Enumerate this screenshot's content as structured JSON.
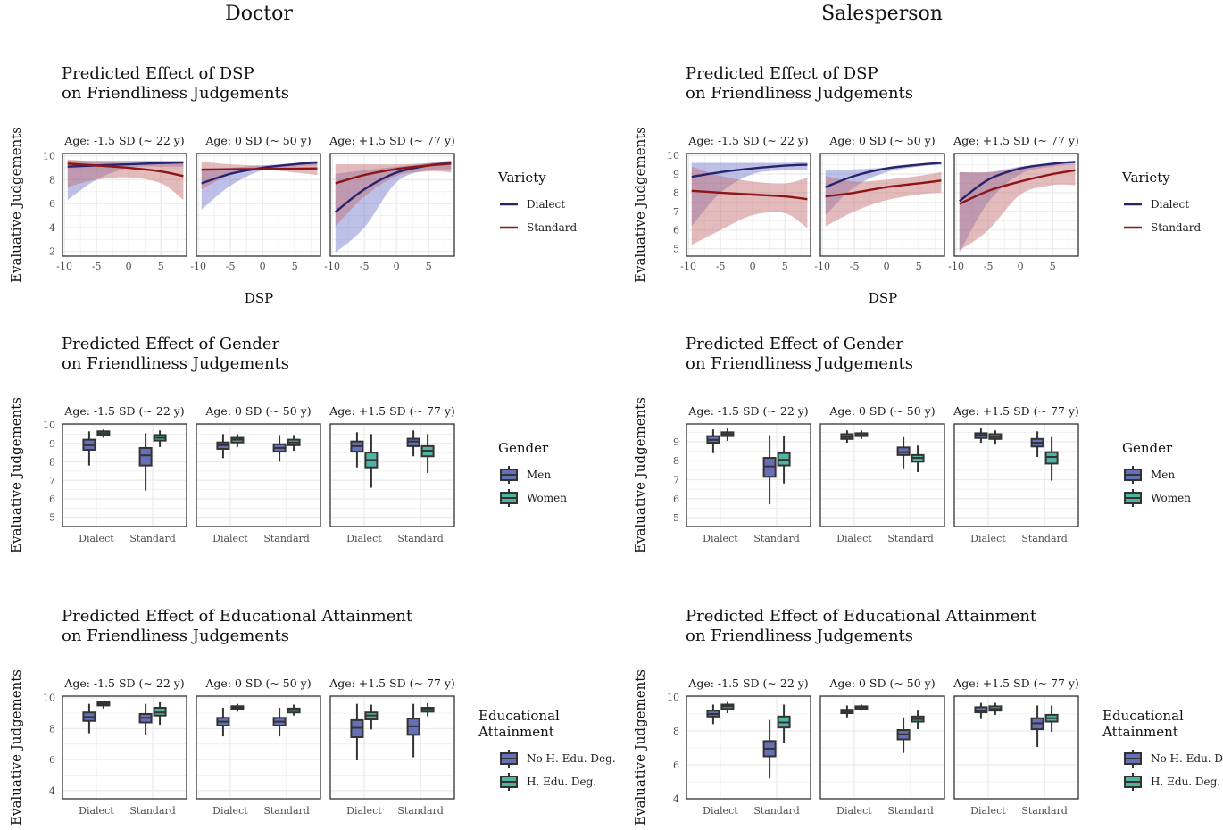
{
  "columns": [
    {
      "title": "Doctor"
    },
    {
      "title": "Salesperson"
    }
  ],
  "colors": {
    "dialect_line": "#27236e",
    "standard_line": "#8e1515",
    "dialect_band": "#6f76c9",
    "standard_band": "#c0686a",
    "men_fill": "#6670b6",
    "women_fill": "#4fb5a2",
    "box_outline": "#333333",
    "grid": "#ebebeb",
    "panel_border": "#333333"
  },
  "chart_data": [
    {
      "column": 0,
      "row": 0,
      "type": "line",
      "title": [
        "Predicted Effect of DSP",
        "on Friendliness Judgements"
      ],
      "xlabel": "DSP",
      "ylabel": "Evaluative Judgements",
      "xlim": [
        -10.3,
        9.0
      ],
      "ylim": [
        1.6,
        10.2
      ],
      "xticks": [
        -10,
        -5,
        0,
        5
      ],
      "yticks": [
        2,
        4,
        6,
        8,
        10
      ],
      "strips": [
        "Age: -1.5 SD (~ 22 y)",
        "Age: 0 SD (~ 50 y)",
        "Age: +1.5 SD (~ 77 y)"
      ],
      "legend": {
        "title": [
          "Variety"
        ],
        "items": [
          "Dialect",
          "Standard"
        ]
      },
      "x": [
        -9.5,
        -5,
        0,
        5,
        8.5
      ],
      "panels": [
        {
          "series": [
            {
              "name": "Dialect",
              "y": [
                9.1,
                9.2,
                9.3,
                9.4,
                9.45
              ],
              "lower": [
                6.3,
                8.0,
                9.0,
                9.1,
                9.1
              ],
              "upper": [
                9.6,
                9.6,
                9.6,
                9.6,
                9.6
              ]
            },
            {
              "name": "Standard",
              "y": [
                9.35,
                9.2,
                9.0,
                8.7,
                8.3
              ],
              "lower": [
                7.4,
                8.0,
                8.2,
                7.7,
                6.3
              ],
              "upper": [
                9.7,
                9.5,
                9.4,
                9.4,
                9.5
              ]
            }
          ]
        },
        {
          "series": [
            {
              "name": "Dialect",
              "y": [
                7.7,
                8.5,
                9.0,
                9.3,
                9.45
              ],
              "lower": [
                5.5,
                7.5,
                8.8,
                9.1,
                9.2
              ],
              "upper": [
                8.8,
                9.0,
                9.2,
                9.4,
                9.6
              ]
            },
            {
              "name": "Standard",
              "y": [
                8.85,
                8.88,
                8.9,
                8.93,
                8.95
              ],
              "lower": [
                7.2,
                8.4,
                8.8,
                8.6,
                8.4
              ],
              "upper": [
                9.5,
                9.3,
                9.2,
                9.3,
                9.5
              ]
            }
          ]
        },
        {
          "series": [
            {
              "name": "Dialect",
              "y": [
                5.3,
                7.2,
                8.6,
                9.2,
                9.4
              ],
              "lower": [
                1.9,
                4.0,
                7.8,
                8.8,
                8.8
              ],
              "upper": [
                8.5,
                8.8,
                9.1,
                9.4,
                9.6
              ]
            },
            {
              "name": "Standard",
              "y": [
                7.7,
                8.4,
                8.9,
                9.2,
                9.35
              ],
              "lower": [
                4.1,
                6.6,
                8.3,
                8.7,
                8.6
              ],
              "upper": [
                9.3,
                9.3,
                9.3,
                9.4,
                9.6
              ]
            }
          ]
        }
      ]
    },
    {
      "column": 1,
      "row": 0,
      "type": "line",
      "title": [
        "Predicted Effect of DSP",
        "on Friendliness Judgements"
      ],
      "xlabel": "DSP",
      "ylabel": "Evaluative Judgements",
      "xlim": [
        -10.3,
        9.0
      ],
      "ylim": [
        4.6,
        10.1
      ],
      "xticks": [
        -10,
        -5,
        0,
        5
      ],
      "yticks": [
        5,
        6,
        7,
        8,
        9,
        10
      ],
      "strips": [
        "Age: -1.5 SD (~ 22 y)",
        "Age: 0 SD (~ 50 y)",
        "Age: +1.5 SD (~ 77 y)"
      ],
      "legend": {
        "title": [
          "Variety"
        ],
        "items": [
          "Dialect",
          "Standard"
        ]
      },
      "x": [
        -9.5,
        -5,
        0,
        5,
        8.5
      ],
      "panels": [
        {
          "series": [
            {
              "name": "Dialect",
              "y": [
                8.85,
                9.1,
                9.3,
                9.45,
                9.5
              ],
              "lower": [
                6.2,
                8.0,
                9.0,
                9.2,
                9.2
              ],
              "upper": [
                9.6,
                9.6,
                9.6,
                9.6,
                9.65
              ]
            },
            {
              "name": "Standard",
              "y": [
                8.1,
                8.0,
                7.9,
                7.8,
                7.65
              ],
              "lower": [
                5.2,
                6.0,
                6.8,
                6.9,
                6.1
              ],
              "upper": [
                9.4,
                8.9,
                8.6,
                8.5,
                8.8
              ]
            }
          ]
        },
        {
          "series": [
            {
              "name": "Dialect",
              "y": [
                8.3,
                8.9,
                9.3,
                9.5,
                9.6
              ],
              "lower": [
                6.8,
                8.3,
                9.1,
                9.4,
                9.5
              ],
              "upper": [
                9.2,
                9.25,
                9.35,
                9.55,
                9.65
              ]
            },
            {
              "name": "Standard",
              "y": [
                7.8,
                8.0,
                8.3,
                8.5,
                8.65
              ],
              "lower": [
                6.2,
                7.0,
                7.6,
                7.9,
                8.0
              ],
              "upper": [
                8.9,
                8.6,
                8.7,
                8.9,
                9.1
              ]
            }
          ]
        },
        {
          "series": [
            {
              "name": "Dialect",
              "y": [
                7.55,
                8.7,
                9.3,
                9.55,
                9.65
              ],
              "lower": [
                4.8,
                7.5,
                9.0,
                9.4,
                9.5
              ],
              "upper": [
                9.1,
                9.1,
                9.4,
                9.6,
                9.7
              ]
            },
            {
              "name": "Standard",
              "y": [
                7.4,
                8.1,
                8.6,
                9.0,
                9.2
              ],
              "lower": [
                4.9,
                6.0,
                7.9,
                8.4,
                8.4
              ],
              "upper": [
                9.1,
                9.1,
                9.3,
                9.5,
                9.5
              ]
            }
          ]
        }
      ]
    },
    {
      "column": 0,
      "row": 1,
      "type": "box",
      "title": [
        "Predicted Effect of Gender",
        "on Friendliness Judgements"
      ],
      "ylabel": "Evaluative Judgements",
      "ylim": [
        4.5,
        10.05
      ],
      "yticks": [
        5,
        6,
        7,
        8,
        9,
        10
      ],
      "categories": [
        "Dialect",
        "Standard"
      ],
      "strips": [
        "Age: -1.5 SD (~ 22 y)",
        "Age: 0 SD (~ 50 y)",
        "Age: +1.5 SD (~ 77 y)"
      ],
      "legend": {
        "title": [
          "Gender"
        ],
        "items": [
          "Men",
          "Women"
        ]
      },
      "stats_order": [
        "min",
        "q1",
        "median",
        "q3",
        "max"
      ],
      "panels": [
        {
          "groups": [
            [
              [
                7.8,
                8.65,
                8.9,
                9.2,
                9.65
              ],
              [
                9.3,
                9.45,
                9.55,
                9.65,
                9.75
              ]
            ],
            [
              [
                6.45,
                7.8,
                8.35,
                8.75,
                9.55
              ],
              [
                8.8,
                9.15,
                9.3,
                9.45,
                9.7
              ]
            ]
          ]
        },
        {
          "groups": [
            [
              [
                8.2,
                8.7,
                8.9,
                9.05,
                9.5
              ],
              [
                8.8,
                9.05,
                9.2,
                9.3,
                9.5
              ]
            ],
            [
              [
                8.0,
                8.55,
                8.75,
                8.95,
                9.45
              ],
              [
                8.6,
                8.9,
                9.05,
                9.2,
                9.45
              ]
            ]
          ]
        },
        {
          "groups": [
            [
              [
                7.7,
                8.55,
                8.85,
                9.1,
                9.6
              ],
              [
                6.6,
                7.7,
                8.1,
                8.5,
                9.5
              ]
            ],
            [
              [
                8.3,
                8.85,
                9.1,
                9.25,
                9.7
              ],
              [
                7.4,
                8.3,
                8.6,
                8.85,
                9.5
              ]
            ]
          ]
        }
      ]
    },
    {
      "column": 1,
      "row": 1,
      "type": "box",
      "title": [
        "Predicted Effect of Gender",
        "on Friendliness Judgements"
      ],
      "ylabel": "Evaluative Judgements",
      "ylim": [
        4.53,
        9.94
      ],
      "yticks": [
        5,
        6,
        7,
        8,
        9
      ],
      "categories": [
        "Dialect",
        "Standard"
      ],
      "strips": [
        "Age: -1.5 SD (~ 22 y)",
        "Age: 0 SD (~ 50 y)",
        "Age: +1.5 SD (~ 77 y)"
      ],
      "legend": {
        "title": [
          "Gender"
        ],
        "items": [
          "Men",
          "Women"
        ]
      },
      "stats_order": [
        "min",
        "q1",
        "median",
        "q3",
        "max"
      ],
      "panels": [
        {
          "groups": [
            [
              [
                8.4,
                8.95,
                9.1,
                9.3,
                9.65
              ],
              [
                9.05,
                9.3,
                9.4,
                9.5,
                9.7
              ]
            ],
            [
              [
                5.7,
                7.15,
                7.7,
                8.15,
                9.35
              ],
              [
                6.8,
                7.75,
                8.05,
                8.4,
                9.3
              ]
            ]
          ]
        },
        {
          "groups": [
            [
              [
                8.95,
                9.15,
                9.25,
                9.4,
                9.6
              ],
              [
                9.15,
                9.3,
                9.35,
                9.45,
                9.6
              ]
            ],
            [
              [
                7.6,
                8.3,
                8.45,
                8.7,
                9.25
              ],
              [
                7.4,
                7.95,
                8.15,
                8.3,
                8.8
              ]
            ]
          ]
        },
        {
          "groups": [
            [
              [
                8.95,
                9.2,
                9.35,
                9.45,
                9.7
              ],
              [
                8.85,
                9.15,
                9.25,
                9.4,
                9.6
              ]
            ],
            [
              [
                8.2,
                8.75,
                8.95,
                9.15,
                9.55
              ],
              [
                6.95,
                7.85,
                8.2,
                8.45,
                9.25
              ]
            ]
          ]
        }
      ]
    },
    {
      "column": 0,
      "row": 2,
      "type": "box",
      "title": [
        "Predicted Effect of Educational Attainment",
        "on Friendliness Judgements"
      ],
      "ylabel": "Evaluative Judgements",
      "ylim": [
        3.47,
        10.1
      ],
      "yticks": [
        4,
        6,
        8,
        10
      ],
      "categories": [
        "Dialect",
        "Standard"
      ],
      "strips": [
        "Age: -1.5 SD (~ 22 y)",
        "Age: 0 SD (~ 50 y)",
        "Age: +1.5 SD (~ 77 y)"
      ],
      "legend": {
        "title": [
          "Educational",
          "Attainment"
        ],
        "items": [
          "No H. Edu. Deg.",
          "H. Edu. Deg."
        ]
      },
      "stats_order": [
        "min",
        "q1",
        "median",
        "q3",
        "max"
      ],
      "panels": [
        {
          "groups": [
            [
              [
                7.7,
                8.5,
                8.75,
                9.05,
                9.6
              ],
              [
                9.3,
                9.5,
                9.6,
                9.7,
                9.75
              ]
            ],
            [
              [
                7.6,
                8.4,
                8.7,
                8.95,
                9.6
              ],
              [
                8.25,
                8.85,
                9.05,
                9.35,
                9.7
              ]
            ]
          ]
        },
        {
          "groups": [
            [
              [
                7.5,
                8.2,
                8.45,
                8.7,
                9.35
              ],
              [
                9.1,
                9.25,
                9.35,
                9.45,
                9.6
              ]
            ],
            [
              [
                7.5,
                8.2,
                8.45,
                8.7,
                9.35
              ],
              [
                8.85,
                9.05,
                9.2,
                9.3,
                9.55
              ]
            ]
          ]
        },
        {
          "groups": [
            [
              [
                5.95,
                7.45,
                8.05,
                8.55,
                9.6
              ],
              [
                7.95,
                8.6,
                8.85,
                9.05,
                9.55
              ]
            ],
            [
              [
                6.15,
                7.6,
                8.15,
                8.65,
                9.6
              ],
              [
                8.8,
                9.1,
                9.25,
                9.35,
                9.65
              ]
            ]
          ]
        }
      ]
    },
    {
      "column": 1,
      "row": 2,
      "type": "box",
      "title": [
        "Predicted Effect of Educational Attainment",
        "on Friendliness Judgements"
      ],
      "ylabel": "Evaluative Judgements",
      "ylim": [
        4.0,
        10.05
      ],
      "yticks": [
        4,
        6,
        8,
        10
      ],
      "categories": [
        "Dialect",
        "Standard"
      ],
      "strips": [
        "Age: -1.5 SD (~ 22 y)",
        "Age: 0 SD (~ 50 y)",
        "Age: +1.5 SD (~ 77 y)"
      ],
      "legend": {
        "title": [
          "Educational",
          "Attainment"
        ],
        "items": [
          "No H. Edu. Deg.",
          "H. Edu. Deg."
        ]
      },
      "stats_order": [
        "min",
        "q1",
        "median",
        "q3",
        "max"
      ],
      "panels": [
        {
          "groups": [
            [
              [
                8.4,
                8.85,
                9.0,
                9.2,
                9.55
              ],
              [
                9.05,
                9.3,
                9.45,
                9.55,
                9.7
              ]
            ],
            [
              [
                5.2,
                6.5,
                6.95,
                7.4,
                8.65
              ],
              [
                7.3,
                8.2,
                8.5,
                8.85,
                9.55
              ]
            ]
          ]
        },
        {
          "groups": [
            [
              [
                8.8,
                9.05,
                9.15,
                9.25,
                9.5
              ],
              [
                9.2,
                9.3,
                9.4,
                9.45,
                9.55
              ]
            ],
            [
              [
                6.7,
                7.5,
                7.8,
                8.05,
                8.8
              ],
              [
                8.1,
                8.55,
                8.7,
                8.85,
                9.2
              ]
            ]
          ]
        },
        {
          "groups": [
            [
              [
                8.7,
                9.1,
                9.2,
                9.4,
                9.65
              ],
              [
                8.95,
                9.2,
                9.3,
                9.45,
                9.65
              ]
            ],
            [
              [
                7.05,
                8.1,
                8.45,
                8.75,
                9.5
              ],
              [
                7.95,
                8.55,
                8.75,
                8.95,
                9.5
              ]
            ]
          ]
        }
      ]
    }
  ]
}
